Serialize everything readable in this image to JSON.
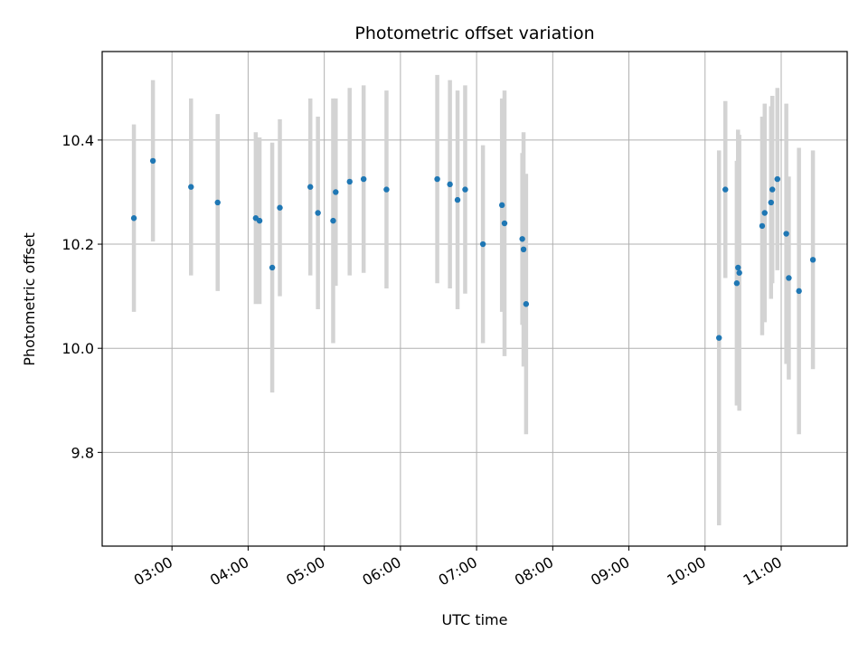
{
  "chart_data": {
    "type": "scatter",
    "title": "Photometric offset variation",
    "xlabel": "UTC time",
    "ylabel": "Photometric offset",
    "x_tick_labels": [
      "03:00",
      "04:00",
      "05:00",
      "06:00",
      "07:00",
      "08:00",
      "09:00",
      "10:00",
      "11:00"
    ],
    "y_tick_labels": [
      "9.8",
      "10.0",
      "10.2",
      "10.4"
    ],
    "y_ticks": [
      9.8,
      10.0,
      10.2,
      10.4
    ],
    "xlim": [
      "02:05",
      "11:52"
    ],
    "ylim": [
      9.62,
      10.57
    ],
    "grid": true,
    "marker_color": "#1f77b4",
    "errorbar_color": "#d3d3d3",
    "series": [
      {
        "points": [
          {
            "x": "02:30",
            "y": 10.25,
            "err": 0.18
          },
          {
            "x": "02:45",
            "y": 10.36,
            "err": 0.155
          },
          {
            "x": "03:15",
            "y": 10.31,
            "err": 0.17
          },
          {
            "x": "03:36",
            "y": 10.28,
            "err": 0.17
          },
          {
            "x": "04:06",
            "y": 10.25,
            "err": 0.165
          },
          {
            "x": "04:09",
            "y": 10.245,
            "err": 0.16
          },
          {
            "x": "04:19",
            "y": 10.155,
            "err": 0.24
          },
          {
            "x": "04:25",
            "y": 10.27,
            "err": 0.17
          },
          {
            "x": "04:49",
            "y": 10.31,
            "err": 0.17
          },
          {
            "x": "04:55",
            "y": 10.26,
            "err": 0.185
          },
          {
            "x": "05:07",
            "y": 10.245,
            "err": 0.235
          },
          {
            "x": "05:09",
            "y": 10.3,
            "err": 0.18
          },
          {
            "x": "05:20",
            "y": 10.32,
            "err": 0.18
          },
          {
            "x": "05:31",
            "y": 10.325,
            "err": 0.18
          },
          {
            "x": "05:49",
            "y": 10.305,
            "err": 0.19
          },
          {
            "x": "06:29",
            "y": 10.325,
            "err": 0.2
          },
          {
            "x": "06:39",
            "y": 10.315,
            "err": 0.2
          },
          {
            "x": "06:45",
            "y": 10.285,
            "err": 0.21
          },
          {
            "x": "06:51",
            "y": 10.305,
            "err": 0.2
          },
          {
            "x": "07:05",
            "y": 10.2,
            "err": 0.19
          },
          {
            "x": "07:20",
            "y": 10.275,
            "err": 0.205
          },
          {
            "x": "07:22",
            "y": 10.24,
            "err": 0.255
          },
          {
            "x": "07:36",
            "y": 10.21,
            "err": 0.165
          },
          {
            "x": "07:37",
            "y": 10.19,
            "err": 0.225
          },
          {
            "x": "07:39",
            "y": 10.085,
            "err": 0.25
          },
          {
            "x": "10:11",
            "y": 10.02,
            "err": 0.36
          },
          {
            "x": "10:16",
            "y": 10.305,
            "err": 0.17
          },
          {
            "x": "10:25",
            "y": 10.125,
            "err": 0.235
          },
          {
            "x": "10:26",
            "y": 10.155,
            "err": 0.265
          },
          {
            "x": "10:27",
            "y": 10.145,
            "err": 0.265
          },
          {
            "x": "10:45",
            "y": 10.235,
            "err": 0.21
          },
          {
            "x": "10:47",
            "y": 10.26,
            "err": 0.21
          },
          {
            "x": "10:52",
            "y": 10.28,
            "err": 0.185
          },
          {
            "x": "10:53",
            "y": 10.305,
            "err": 0.18
          },
          {
            "x": "10:57",
            "y": 10.325,
            "err": 0.175
          },
          {
            "x": "11:04",
            "y": 10.22,
            "err": 0.25
          },
          {
            "x": "11:06",
            "y": 10.135,
            "err": 0.195
          },
          {
            "x": "11:14",
            "y": 10.11,
            "err": 0.275
          },
          {
            "x": "11:25",
            "y": 10.17,
            "err": 0.21
          }
        ]
      }
    ]
  }
}
